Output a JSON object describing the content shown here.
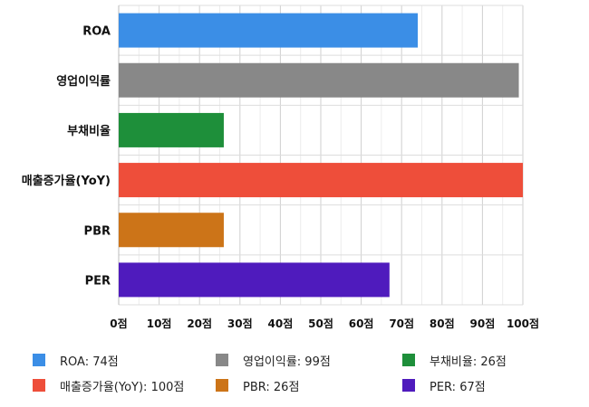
{
  "chart_data": {
    "type": "bar",
    "orientation": "horizontal",
    "categories": [
      "ROA",
      "영업이익률",
      "부채비율",
      "매출증가율(YoY)",
      "PBR",
      "PER"
    ],
    "values": [
      74,
      99,
      26,
      100,
      26,
      67
    ],
    "colors": [
      "#3b8ee6",
      "#888888",
      "#1e8f3a",
      "#ee4e3a",
      "#cc7418",
      "#4f1bbd"
    ],
    "x_ticks": [
      "0점",
      "10점",
      "20점",
      "30점",
      "40점",
      "50점",
      "60점",
      "70점",
      "80점",
      "90점",
      "100점"
    ],
    "xlim": [
      0,
      100
    ],
    "grid": true,
    "legend_position": "bottom",
    "legend": [
      {
        "label": "ROA: 74점",
        "color": "#3b8ee6"
      },
      {
        "label": "영업이익률: 99점",
        "color": "#888888"
      },
      {
        "label": "부채비율: 26점",
        "color": "#1e8f3a"
      },
      {
        "label": "매출증가율(YoY): 100점",
        "color": "#ee4e3a"
      },
      {
        "label": "PBR: 26점",
        "color": "#cc7418"
      },
      {
        "label": "PER: 67점",
        "color": "#4f1bbd"
      }
    ]
  }
}
